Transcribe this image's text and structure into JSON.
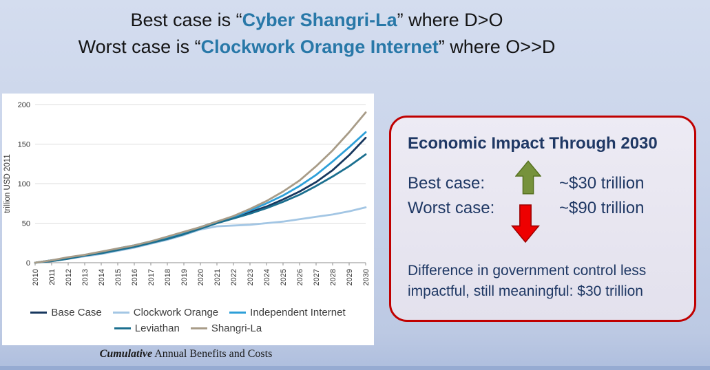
{
  "title": {
    "line1_prefix": "Best case is “",
    "line1_highlight": "Cyber Shangri-La",
    "line1_suffix": "” where D>O",
    "line2_prefix": "Worst case is “",
    "line2_highlight": "Clockwork Orange Internet",
    "line2_suffix": "” where O>>D"
  },
  "chart_data": {
    "type": "line",
    "title": "",
    "xlabel": "",
    "ylabel": "trillion USD 2011",
    "ylim": [
      0,
      200
    ],
    "yticks": [
      0,
      50,
      100,
      150,
      200
    ],
    "grid": true,
    "legend_position": "bottom",
    "x": [
      2010,
      2011,
      2012,
      2013,
      2014,
      2015,
      2016,
      2017,
      2018,
      2019,
      2020,
      2021,
      2022,
      2023,
      2024,
      2025,
      2026,
      2027,
      2028,
      2029,
      2030
    ],
    "series": [
      {
        "name": "Base Case",
        "color": "#17375e",
        "values": [
          0,
          3,
          6,
          9,
          13,
          17,
          21,
          26,
          31,
          37,
          44,
          51,
          57,
          64,
          71,
          80,
          90,
          102,
          117,
          136,
          158
        ]
      },
      {
        "name": "Clockwork Orange",
        "color": "#a3c6e4",
        "values": [
          0,
          2,
          5,
          8,
          11,
          15,
          19,
          24,
          29,
          35,
          42,
          46,
          47,
          48,
          50,
          52,
          55,
          58,
          61,
          65,
          70
        ]
      },
      {
        "name": "Independent Internet",
        "color": "#2d9fd8",
        "values": [
          0,
          3,
          6,
          10,
          13,
          18,
          22,
          27,
          32,
          38,
          45,
          52,
          58,
          66,
          75,
          85,
          97,
          111,
          128,
          146,
          165
        ]
      },
      {
        "name": "Leviathan",
        "color": "#1b6f8f",
        "values": [
          0,
          2,
          5,
          9,
          12,
          16,
          20,
          25,
          30,
          36,
          43,
          50,
          56,
          62,
          69,
          77,
          86,
          97,
          109,
          122,
          137
        ]
      },
      {
        "name": "Shangri-La",
        "color": "#a89c88",
        "values": [
          0,
          3,
          7,
          10,
          14,
          18,
          22,
          27,
          33,
          39,
          45,
          52,
          59,
          68,
          78,
          90,
          104,
          122,
          142,
          165,
          190
        ]
      }
    ],
    "legend_rows": [
      [
        "Base Case",
        "Clockwork Orange",
        "Independent Internet"
      ],
      [
        "Leviathan",
        "Shangri-La"
      ]
    ],
    "caption_italic": "Cumulative",
    "caption_rest": " Annual Benefits and Costs"
  },
  "impact_box": {
    "title": "Economic Impact Through 2030",
    "rows": [
      {
        "label": "Best case:",
        "arrow": "up",
        "value": "~$30 trillion"
      },
      {
        "label": "Worst case:",
        "arrow": "down",
        "value": "~$90 trillion"
      }
    ],
    "note_line1": "Difference in government control less",
    "note_line2": "impactful, still meaningful: $30 trillion"
  },
  "colors": {
    "accent_blue": "#2878a8",
    "navy": "#1f3864",
    "border_red": "#c00000",
    "arrow_green": "#76923c",
    "arrow_red": "#ee0000"
  }
}
